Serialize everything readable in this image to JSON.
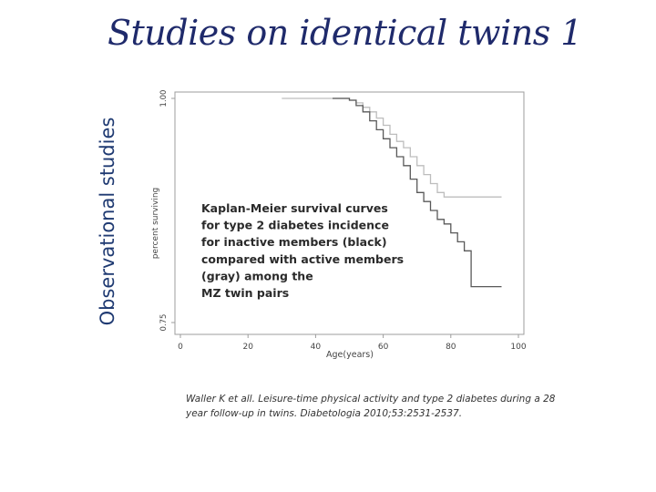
{
  "slide": {
    "title": "Studies on identical twins 1",
    "side_label": "Observational studies",
    "citation": "Waller K et all. Leisure-time physical activity and type 2 diabetes during a 28 year follow-up in twins. Diabetologia 2010;53:2531-2537."
  },
  "chart_data": {
    "type": "line",
    "step": true,
    "xlabel": "Age(years)",
    "ylabel": "percent surviving",
    "xlim": [
      0,
      100
    ],
    "ylim": [
      0.75,
      1.0
    ],
    "x_ticks": [
      0,
      20,
      40,
      60,
      80,
      100
    ],
    "y_ticks": [
      "0.75",
      "1.00"
    ],
    "annotation": [
      "Kaplan-Meier survival curves",
      "for type 2 diabetes incidence",
      "for inactive members (black)",
      "compared with active members",
      "(gray) among the",
      "MZ twin pairs"
    ],
    "series": [
      {
        "color": "#bdbdbd",
        "x": [
          30,
          45,
          50,
          52,
          54,
          56,
          58,
          60,
          62,
          64,
          66,
          68,
          70,
          72,
          74,
          76,
          78,
          80,
          95
        ],
        "y": [
          1.0,
          1.0,
          0.998,
          0.995,
          0.99,
          0.985,
          0.978,
          0.97,
          0.96,
          0.952,
          0.945,
          0.935,
          0.925,
          0.915,
          0.905,
          0.895,
          0.89,
          0.89,
          0.89
        ]
      },
      {
        "color": "#595959",
        "x": [
          45,
          50,
          52,
          54,
          56,
          58,
          60,
          62,
          64,
          66,
          68,
          70,
          72,
          74,
          76,
          78,
          80,
          82,
          84,
          86,
          88,
          95
        ],
        "y": [
          1.0,
          0.998,
          0.992,
          0.985,
          0.975,
          0.965,
          0.955,
          0.945,
          0.935,
          0.925,
          0.91,
          0.895,
          0.885,
          0.875,
          0.865,
          0.86,
          0.85,
          0.84,
          0.83,
          0.79,
          0.79,
          0.79
        ]
      }
    ]
  }
}
